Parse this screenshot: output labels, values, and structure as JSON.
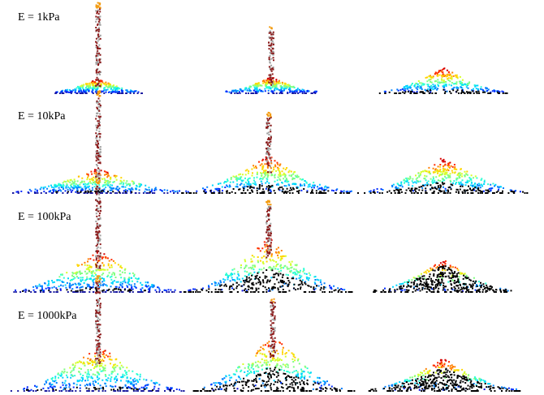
{
  "labels": [
    "E = 1kPa",
    "E = 10kPa",
    "E = 100kPa",
    "E = 1000kPa"
  ]
}
